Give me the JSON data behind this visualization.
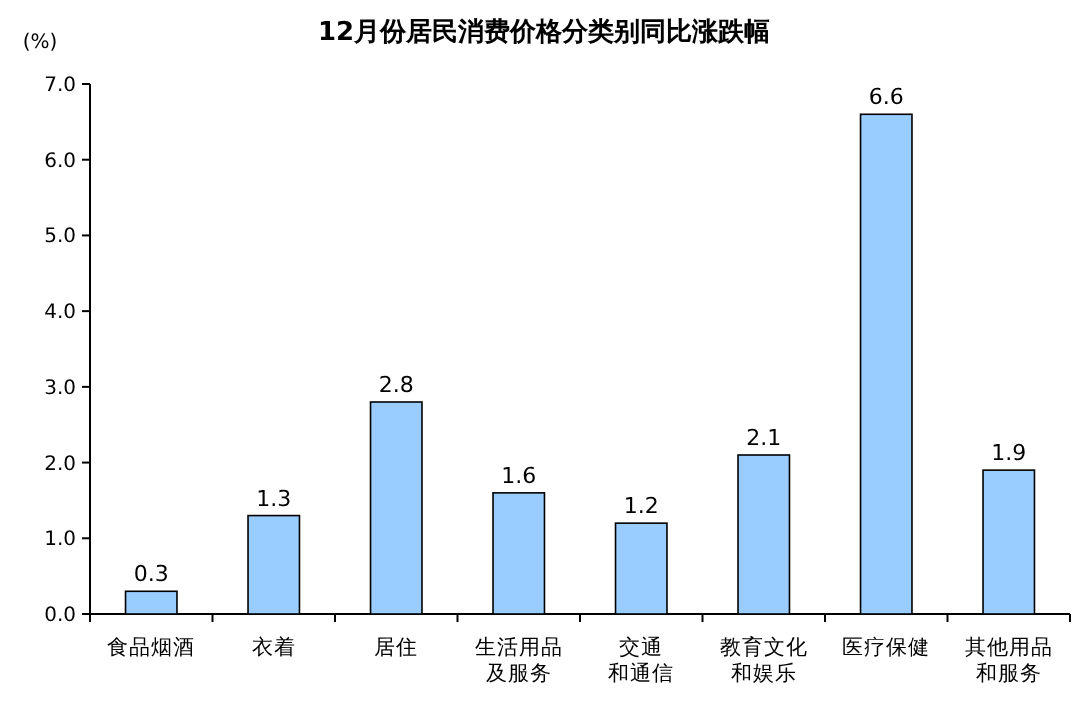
{
  "chart_data": {
    "type": "bar",
    "title": "12月份居民消费价格分类别同比涨跌幅",
    "ylabel": "(%)",
    "categories": [
      "食品烟酒",
      "衣着",
      "居住",
      "生活用品及服务",
      "交通和通信",
      "教育文化和娱乐",
      "医疗保健",
      "其他用品和服务"
    ],
    "values": [
      0.3,
      1.3,
      2.8,
      1.6,
      1.2,
      2.1,
      6.6,
      1.9
    ],
    "color": "#99ccff",
    "data_labels": true,
    "ylim": [
      0,
      7
    ],
    "yticks": [
      {
        "value": 0,
        "label": "0.0"
      },
      {
        "value": 1,
        "label": "1.0"
      },
      {
        "value": 2,
        "label": "2.0"
      },
      {
        "value": 3,
        "label": "3.0"
      },
      {
        "value": 4,
        "label": "4.0"
      },
      {
        "value": 5,
        "label": "5.0"
      },
      {
        "value": 6,
        "label": "6.0"
      },
      {
        "value": 7,
        "label": "7.0"
      }
    ]
  }
}
